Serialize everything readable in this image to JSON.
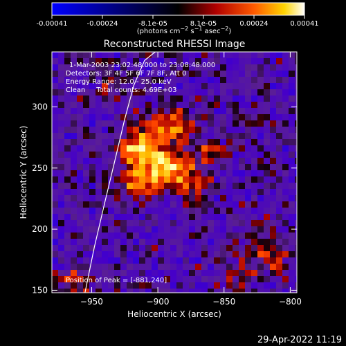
{
  "colorbar": {
    "tick_labels": [
      "-0.00041",
      "-0.00024",
      "-8.1e-05",
      "8.1e-05",
      "0.00024",
      "0.00041"
    ],
    "range": [
      -0.00041,
      0.00041
    ],
    "colormap": "blue-black-red-yellow-white"
  },
  "chart_data": {
    "type": "heatmap",
    "title": "Reconstructed RHESSI Image",
    "xlabel": "Heliocentric X (arcsec)",
    "ylabel": "Heliocentric Y (arcsec)",
    "xlim": [
      -980,
      -795
    ],
    "ylim": [
      148,
      345
    ],
    "x_ticks": [
      -950,
      -900,
      -850,
      -800
    ],
    "y_ticks": [
      150,
      200,
      250,
      300
    ],
    "info_lines": [
      "1-Mar-2003 23:02:48.000 to 23:08:48.000",
      "Detectors: 3F 4F 5F 6F 7F 8F, Att 0",
      "Energy Range: 12.0 - 25.0 keV",
      "Clean     Total counts: 4.69E+03"
    ],
    "peak_text": "Position of Peak = [-881,240]",
    "peak": [
      -881,
      240
    ],
    "limb_line": {
      "x": [
        -955,
        -948,
        -940,
        -932,
        -925,
        -918,
        -910,
        -902
      ],
      "y": [
        148,
        185,
        222,
        258,
        290,
        318,
        338,
        345
      ]
    },
    "sources": [
      {
        "x": -896,
        "y": 252,
        "amp": 1.0,
        "sx": 14,
        "sy": 11
      },
      {
        "x": -916,
        "y": 268,
        "amp": 0.78,
        "sx": 10,
        "sy": 10
      },
      {
        "x": -892,
        "y": 285,
        "amp": 0.62,
        "sx": 14,
        "sy": 10
      },
      {
        "x": -918,
        "y": 236,
        "amp": 0.6,
        "sx": 10,
        "sy": 9
      },
      {
        "x": -875,
        "y": 236,
        "amp": 0.5,
        "sx": 9,
        "sy": 8
      },
      {
        "x": -862,
        "y": 262,
        "amp": 0.38,
        "sx": 7,
        "sy": 7
      },
      {
        "x": -818,
        "y": 182,
        "amp": 0.5,
        "sx": 10,
        "sy": 14
      },
      {
        "x": -840,
        "y": 160,
        "amp": 0.42,
        "sx": 9,
        "sy": 8
      },
      {
        "x": -962,
        "y": 158,
        "amp": 0.45,
        "sx": 9,
        "sy": 9
      },
      {
        "x": -935,
        "y": 318,
        "amp": 0.32,
        "sx": 8,
        "sy": 7
      }
    ]
  },
  "footer": {
    "timestamp": "29-Apr-2022 11:19"
  }
}
